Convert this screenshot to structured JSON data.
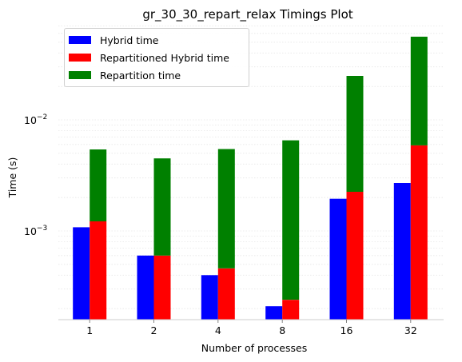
{
  "chart_data": {
    "type": "bar",
    "title": "gr_30_30_repart_relax Timings Plot",
    "xlabel": "Number of processes",
    "ylabel": "Time (s)",
    "yscale": "log",
    "ylim": [
      0.00017,
      0.08
    ],
    "yticks": [
      {
        "value": 0.001,
        "label": "10",
        "exp": "−3"
      },
      {
        "value": 0.01,
        "label": "10",
        "exp": "−2"
      }
    ],
    "categories": [
      "1",
      "2",
      "4",
      "8",
      "16",
      "32"
    ],
    "series": [
      {
        "name": "Hybrid time",
        "color": "#0000ff",
        "values": [
          0.00108,
          0.0006,
          0.0004,
          0.00021,
          0.00195,
          0.0027
        ]
      },
      {
        "name": "Repartitioned Hybrid time",
        "color": "#ff0000",
        "values": [
          0.00122,
          0.0006,
          0.00046,
          0.00024,
          0.00225,
          0.0059
        ]
      },
      {
        "name": "Repartition time",
        "color": "#008000",
        "stacked_on": "Repartitioned Hybrid time",
        "values": [
          0.0042,
          0.0039,
          0.005,
          0.0063,
          0.0226,
          0.0502
        ]
      }
    ],
    "grid": "minor-y-dotted",
    "legend_position": "upper-left"
  },
  "legend": [
    {
      "label": "Hybrid time",
      "color": "#0000ff"
    },
    {
      "label": "Repartitioned Hybrid time",
      "color": "#ff0000"
    },
    {
      "label": "Repartition time",
      "color": "#008000"
    }
  ]
}
